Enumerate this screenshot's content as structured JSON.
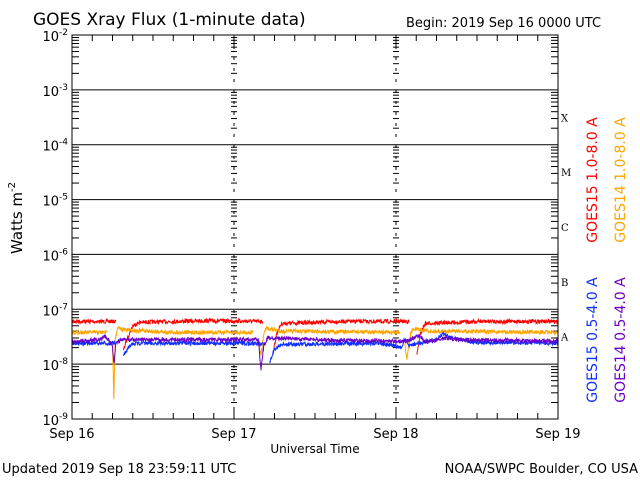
{
  "chart_data": {
    "type": "line",
    "title": "GOES Xray Flux (1-minute data)",
    "begin_label": "Begin:  2019 Sep 16 0000 UTC",
    "xlabel": "Universal Time",
    "ylabel": "Watts m",
    "ylabel_exp": "-2",
    "x_unit": "hours since 2019 Sep 16 0000 UTC",
    "xlim": [
      0,
      72
    ],
    "ylim": [
      1e-09,
      0.01
    ],
    "yscale": "log",
    "x_ticks": [
      {
        "x": 0,
        "label": "Sep 16"
      },
      {
        "x": 24,
        "label": "Sep 17"
      },
      {
        "x": 48,
        "label": "Sep 18"
      },
      {
        "x": 72,
        "label": "Sep 19"
      }
    ],
    "y_ticks": [
      {
        "exp": -2,
        "label": "10",
        "sup": "-2"
      },
      {
        "exp": -3,
        "label": "10",
        "sup": "-3"
      },
      {
        "exp": -4,
        "label": "10",
        "sup": "-4"
      },
      {
        "exp": -5,
        "label": "10",
        "sup": "-5"
      },
      {
        "exp": -6,
        "label": "10",
        "sup": "-6"
      },
      {
        "exp": -7,
        "label": "10",
        "sup": "-7"
      },
      {
        "exp": -8,
        "label": "10",
        "sup": "-8"
      },
      {
        "exp": -9,
        "label": "10",
        "sup": "-9"
      }
    ],
    "flare_classes": [
      {
        "label": "X",
        "exp": -3.5
      },
      {
        "label": "M",
        "exp": -4.5
      },
      {
        "label": "C",
        "exp": -5.5
      },
      {
        "label": "B",
        "exp": -6.5
      },
      {
        "label": "A",
        "exp": -7.5
      }
    ],
    "grid": true,
    "legend_placement": "right",
    "series": [
      {
        "name": "GOES15 1.0-8.0 A",
        "color": "#ff0000",
        "segments": [
          [
            [
              0,
              6e-08
            ],
            [
              6.5,
              6e-08
            ]
          ],
          [
            [
              7.6,
              1.8e-08
            ],
            [
              8.2,
              3e-08
            ],
            [
              9,
              5e-08
            ],
            [
              10,
              5.8e-08
            ],
            [
              20,
              6.2e-08
            ],
            [
              28.3,
              6e-08
            ]
          ],
          [
            [
              29.8,
              1.6e-08
            ],
            [
              30.3,
              3.5e-08
            ],
            [
              31,
              5.5e-08
            ],
            [
              40,
              6e-08
            ],
            [
              50,
              6e-08
            ]
          ],
          [
            [
              51.1,
              1.5e-08
            ],
            [
              51.6,
              3.5e-08
            ],
            [
              52.3,
              5.5e-08
            ],
            [
              60,
              6e-08
            ],
            [
              72,
              6e-08
            ]
          ]
        ]
      },
      {
        "name": "GOES14 1.0-8.0 A",
        "color": "#ffa500",
        "segments": [
          [
            [
              0,
              3.8e-08
            ],
            [
              5.2,
              3.8e-08
            ]
          ],
          [
            [
              6.0,
              2.2e-08
            ],
            [
              6.2,
              2.5e-09
            ],
            [
              6.4,
              3e-08
            ],
            [
              6.8,
              4.5e-08
            ],
            [
              8,
              4.2e-08
            ],
            [
              15,
              3.8e-08
            ],
            [
              26.8,
              3.8e-08
            ]
          ],
          [
            [
              27.6,
              2.5e-08
            ],
            [
              28,
              1.45e-08
            ],
            [
              28.4,
              3.5e-08
            ],
            [
              28.8,
              4.5e-08
            ],
            [
              31,
              4e-08
            ],
            [
              48.6,
              3.8e-08
            ]
          ],
          [
            [
              49.3,
              2.5e-08
            ],
            [
              49.6,
              1.2e-08
            ],
            [
              50,
              3e-08
            ],
            [
              50.5,
              4.5e-08
            ],
            [
              53,
              4e-08
            ],
            [
              72,
              3.8e-08
            ]
          ]
        ]
      },
      {
        "name": "GOES15 0.5-4.0 A",
        "color": "#1030ff",
        "segments": [
          [
            [
              0,
              2.4e-08
            ],
            [
              6.4,
              2.4e-08
            ]
          ],
          [
            [
              7.6,
              1.4e-08
            ],
            [
              8.5,
              2.2e-08
            ],
            [
              9.5,
              2.4e-08
            ],
            [
              28.3,
              2.4e-08
            ]
          ],
          [
            [
              29.3,
              1.1e-08
            ],
            [
              30,
              1.8e-08
            ],
            [
              31,
              2.3e-08
            ],
            [
              46,
              2.4e-08
            ],
            [
              48.8,
              2e-08
            ],
            [
              49.3,
              2.8e-08
            ],
            [
              50,
              2.2e-08
            ],
            [
              52,
              2.5e-08
            ],
            [
              54,
              2.8e-08
            ],
            [
              55,
              3.6e-08
            ],
            [
              57,
              2.8e-08
            ],
            [
              60,
              2.5e-08
            ],
            [
              72,
              2.4e-08
            ]
          ]
        ]
      },
      {
        "name": "GOES14 0.5-4.0 A",
        "color": "#6a00c8",
        "segments": [
          [
            [
              0,
              2.6e-08
            ],
            [
              4,
              2.8e-08
            ],
            [
              5,
              3.2e-08
            ],
            [
              6.0,
              2.2e-08
            ],
            [
              6.2,
              1e-08
            ],
            [
              6.5,
              2.5e-08
            ],
            [
              7.5,
              2.8e-08
            ],
            [
              27.6,
              2.8e-08
            ],
            [
              28,
              8e-09
            ],
            [
              28.4,
              2.2e-08
            ],
            [
              29,
              3e-08
            ],
            [
              40,
              2.7e-08
            ],
            [
              49.5,
              2.6e-08
            ],
            [
              50.5,
              3e-08
            ],
            [
              51.5,
              3.3e-08
            ],
            [
              52.5,
              2.5e-08
            ],
            [
              55,
              3e-08
            ],
            [
              58,
              2.8e-08
            ],
            [
              72,
              2.6e-08
            ]
          ]
        ]
      }
    ]
  },
  "footer": {
    "updated": "Updated 2019 Sep 18 23:59:11 UTC",
    "credit": "NOAA/SWPC Boulder, CO USA"
  }
}
